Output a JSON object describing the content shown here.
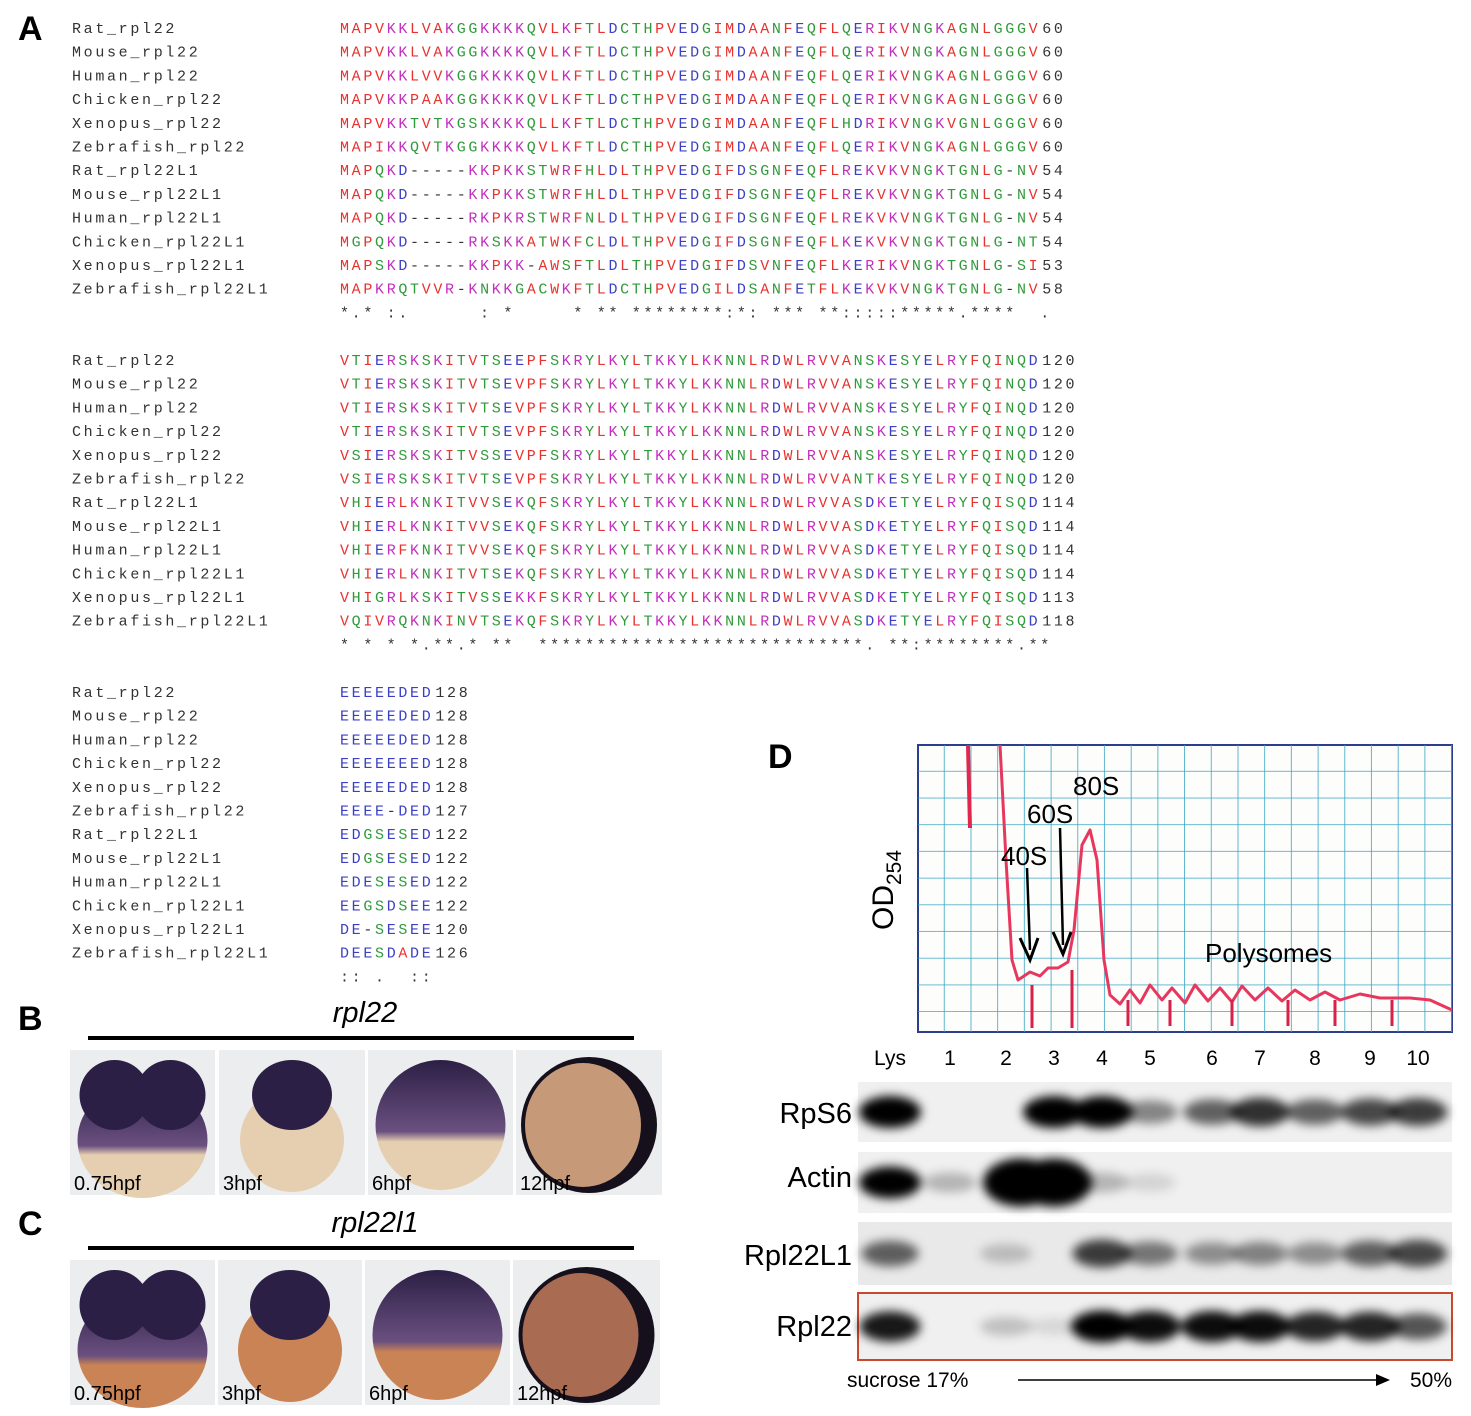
{
  "panel_a": {
    "label": "A",
    "blocks": [
      {
        "rows": [
          {
            "name": "Rat_rpl22",
            "sequence": "MAPVKKLVAKGGKKKKQVLKFTLDCTHPVEDGIMDAANFEQFLQERIKVNGKAGNLGGGV",
            "end": 60
          },
          {
            "name": "Mouse_rpl22",
            "sequence": "MAPVKKLVAKGGKKKKQVLKFTLDCTHPVEDGIMDAANFEQFLQERIKVNGKAGNLGGGV",
            "end": 60
          },
          {
            "name": "Human_rpl22",
            "sequence": "MAPVKKLVVKGGKKKKQVLKFTLDCTHPVEDGIMDAANFEQFLQERIKVNGKAGNLGGGV",
            "end": 60
          },
          {
            "name": "Chicken_rpl22",
            "sequence": "MAPVKKPAAKGGKKKKQVLKFTLDCTHPVEDGIMDAANFEQFLQERIKVNGKAGNLGGGV",
            "end": 60
          },
          {
            "name": "Xenopus_rpl22",
            "sequence": "MAPVKKTVTKGSKKKKQLLKFTLDCTHPVEDGIMDAANFEQFLHDRIKVNGKVGNLGGGV",
            "end": 60
          },
          {
            "name": "Zebrafish_rpl22",
            "sequence": "MAPIKKQVTKGGKKKKQVLKFTLDCTHPVEDGIMDAANFEQFLQERIKVNGKAGNLGGGV",
            "end": 60
          },
          {
            "name": "Rat_rpl22L1",
            "sequence": "MAPQKD-----KKPKKSTWRFHLDLTHPVEDGIFDSGNFEQFLREKVKVNGKTGNLG-NV",
            "end": 54
          },
          {
            "name": "Mouse_rpl22L1",
            "sequence": "MAPQKD-----KKPKKSTWRFHLDLTHPVEDGIFDSGNFEQFLREKVKVNGKTGNLG-NV",
            "end": 54
          },
          {
            "name": "Human_rpl22L1",
            "sequence": "MAPQKD-----RKPKRSTWRFNLDLTHPVEDGIFDSGNFEQFLREKVKVNGKTGNLG-NV",
            "end": 54
          },
          {
            "name": "Chicken_rpl22L1",
            "sequence": "MGPQKD-----RKSKKATWKFCLDLTHPVEDGIFDSGNFEQFLKEKVKVNGKTGNLG-NT",
            "end": 54
          },
          {
            "name": "Xenopus_rpl22L1",
            "sequence": "MAPSKD-----KKPKK-AWSFTLDLTHPVEDGIFDSVNFEQFLKERIKVNGKTGNLG-SI",
            "end": 53
          },
          {
            "name": "Zebrafish_rpl22L1",
            "sequence": "MAPKRQTVVR-KNKKGACWKFTLDCTHPVEDGILDSANFETFLKEKVKVNGKTGNLG-NV",
            "end": 58
          }
        ],
        "consensus": "*.* :.      : *     * ** ********:*: *** **:::::*****.****  ."
      },
      {
        "rows": [
          {
            "name": "Rat_rpl22",
            "sequence": "VTIERSKSKITVTSEEPFSKRYLKYLTKKYLKKNNLRDWLRVVANSKESYELRYFQINQD",
            "end": 120
          },
          {
            "name": "Mouse_rpl22",
            "sequence": "VTIERSKSKITVTSEVPFSKRYLKYLTKKYLKKNNLRDWLRVVANSKESYELRYFQINQD",
            "end": 120
          },
          {
            "name": "Human_rpl22",
            "sequence": "VTIERSKSKITVTSEVPFSKRYLKYLTKKYLKKNNLRDWLRVVANSKESYELRYFQINQD",
            "end": 120
          },
          {
            "name": "Chicken_rpl22",
            "sequence": "VTIERSKSKITVTSEVPFSKRYLKYLTKKYLKKNNLRDWLRVVANSKESYELRYFQINQD",
            "end": 120
          },
          {
            "name": "Xenopus_rpl22",
            "sequence": "VSIERSKSKITVSSEVPFSKRYLKYLTKKYLKKNNLRDWLRVVANSKESYELRYFQINQD",
            "end": 120
          },
          {
            "name": "Zebrafish_rpl22",
            "sequence": "VSIERSKSKITVTSEVPFSKRYLKYLTKKYLKKNNLRDWLRVVANTKESYELRYFQINQD",
            "end": 120
          },
          {
            "name": "Rat_rpl22L1",
            "sequence": "VHIERLKNKITVVSEKQFSKRYLKYLTKKYLKKNNLRDWLRVVASDKETYELRYFQISQD",
            "end": 114
          },
          {
            "name": "Mouse_rpl22L1",
            "sequence": "VHIERLKNKITVVSEKQFSKRYLKYLTKKYLKKNNLRDWLRVVASDKETYELRYFQISQD",
            "end": 114
          },
          {
            "name": "Human_rpl22L1",
            "sequence": "VHIERFKNKITVVSEKQFSKRYLKYLTKKYLKKNNLRDWLRVVASDKETYELRYFQISQD",
            "end": 114
          },
          {
            "name": "Chicken_rpl22L1",
            "sequence": "VHIERLKNKITVTSEKQFSKRYLKYLTKKYLKKNNLRDWLRVVASDKETYELRYFQISQD",
            "end": 114
          },
          {
            "name": "Xenopus_rpl22L1",
            "sequence": "VHIGRLKSKITVSSEKKFSKRYLKYLTKKYLKKNNLRDWLRVVASDKETYELRYFQISQD",
            "end": 113
          },
          {
            "name": "Zebrafish_rpl22L1",
            "sequence": "VQIVRQKNKINVTSEKQFSKRYLKYLTKKYLKKNNLRDWLRVVASDKETYELRYFQISQD",
            "end": 118
          }
        ],
        "consensus": "* * * *.**.* **  ****************************. **:********.**"
      },
      {
        "rows": [
          {
            "name": "Rat_rpl22",
            "sequence": "EEEEEDED",
            "end": 128
          },
          {
            "name": "Mouse_rpl22",
            "sequence": "EEEEEDED",
            "end": 128
          },
          {
            "name": "Human_rpl22",
            "sequence": "EEEEEDED",
            "end": 128
          },
          {
            "name": "Chicken_rpl22",
            "sequence": "EEEEEEED",
            "end": 128
          },
          {
            "name": "Xenopus_rpl22",
            "sequence": "EEEEEDED",
            "end": 128
          },
          {
            "name": "Zebrafish_rpl22",
            "sequence": "EEEE-DED",
            "end": 127
          },
          {
            "name": "Rat_rpl22L1",
            "sequence": "EDGSESED",
            "end": 122
          },
          {
            "name": "Mouse_rpl22L1",
            "sequence": "EDGSESED",
            "end": 122
          },
          {
            "name": "Human_rpl22L1",
            "sequence": "EDESESED",
            "end": 122
          },
          {
            "name": "Chicken_rpl22L1",
            "sequence": "EEGSDSEE",
            "end": 122
          },
          {
            "name": "Xenopus_rpl22L1",
            "sequence": "DE-SESEE",
            "end": 120
          },
          {
            "name": "Zebrafish_rpl22L1",
            "sequence": "DEESDADE",
            "end": 126
          }
        ],
        "consensus": ":: .  ::"
      }
    ]
  },
  "panel_b": {
    "label": "B",
    "gene": "rpl22",
    "stages": [
      "0.75hpf",
      "3hpf",
      "6hpf",
      "12hpf"
    ]
  },
  "panel_c": {
    "label": "C",
    "gene": "rpl22l1",
    "stages": [
      "0.75hpf",
      "3hpf",
      "6hpf",
      "12hpf"
    ]
  },
  "panel_d": {
    "label": "D",
    "y_label": "OD",
    "y_label_sub": "254",
    "peaks": [
      "40S",
      "60S",
      "80S"
    ],
    "polysomes": "Polysomes",
    "fractions": [
      "Lys",
      "1",
      "2",
      "3",
      "4",
      "5",
      "6",
      "7",
      "8",
      "9",
      "10"
    ],
    "blots": [
      "RpS6",
      "Actin",
      "Rpl22L1",
      "Rpl22"
    ],
    "gradient_start": "sucrose 17%",
    "gradient_end": "50%"
  }
}
